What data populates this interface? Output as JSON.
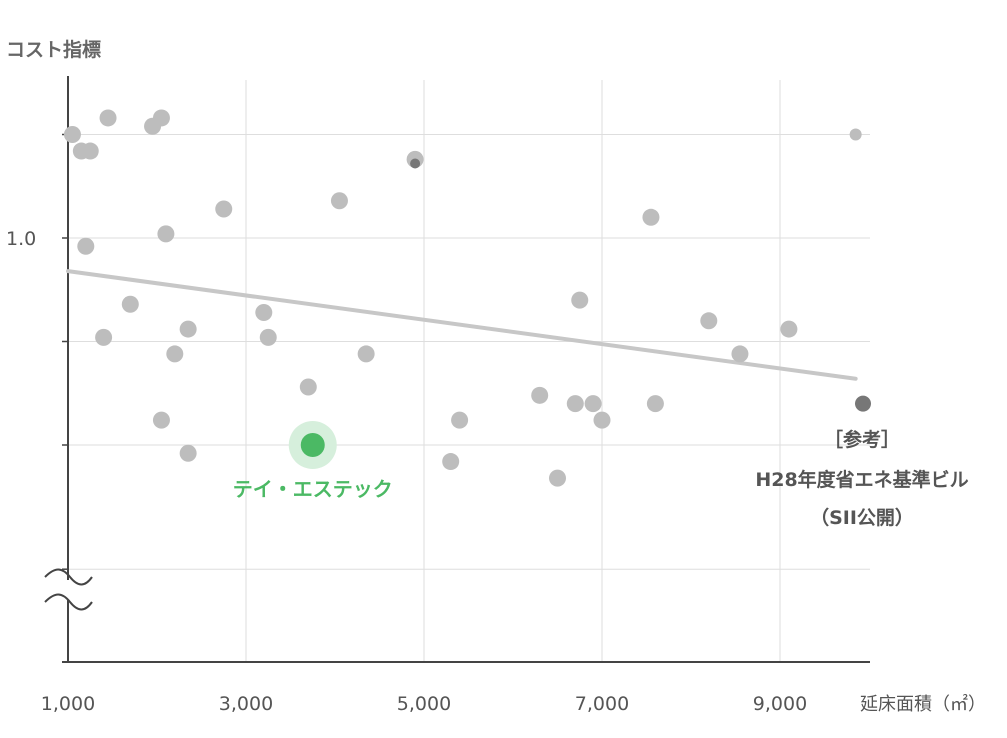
{
  "colors": {
    "point": "#bdbdbd",
    "point_dark": "#777777",
    "trend": "#c7c7c7",
    "highlight": "#4bb964",
    "highlight_halo": "#d6efdc",
    "grid": "#dedede",
    "axis": "#444444"
  },
  "chart_data": {
    "type": "scatter",
    "ylabel": "コスト指標",
    "xlabel": "延床面積（㎡）",
    "x_ticks": [
      1000,
      3000,
      5000,
      7000,
      9000
    ],
    "x_tick_labels": [
      "1,000",
      "3,000",
      "5,000",
      "7,000",
      "9,000"
    ],
    "xlim": [
      1000,
      10000
    ],
    "y_ticks": [
      1.0
    ],
    "y_tick_labels": [
      "1.0"
    ],
    "ylim": [
      0.5,
      1.2
    ],
    "y_axis_break": true,
    "grid": true,
    "series": [
      {
        "points": [
          [
            1050,
            1.125
          ],
          [
            1150,
            1.105
          ],
          [
            1250,
            1.105
          ],
          [
            1450,
            1.145
          ],
          [
            1200,
            0.99
          ],
          [
            1400,
            0.88
          ],
          [
            1700,
            0.92
          ],
          [
            1950,
            1.135
          ],
          [
            2050,
            1.145
          ],
          [
            2100,
            1.005
          ],
          [
            2200,
            0.86
          ],
          [
            2350,
            0.89
          ],
          [
            2050,
            0.78
          ],
          [
            2350,
            0.74
          ],
          [
            2750,
            1.035
          ],
          [
            3200,
            0.91
          ],
          [
            3250,
            0.88
          ],
          [
            3700,
            0.82
          ],
          [
            4050,
            1.045
          ],
          [
            4350,
            0.86
          ],
          [
            4900,
            1.095
          ],
          [
            5300,
            0.73
          ],
          [
            5400,
            0.78
          ],
          [
            6300,
            0.81
          ],
          [
            6500,
            0.71
          ],
          [
            6700,
            0.8
          ],
          [
            6750,
            0.925
          ],
          [
            6900,
            0.8
          ],
          [
            7000,
            0.78
          ],
          [
            7550,
            1.025
          ],
          [
            7600,
            0.8
          ],
          [
            8200,
            0.9
          ],
          [
            8550,
            0.86
          ],
          [
            9100,
            0.89
          ],
          [
            9850,
            1.125
          ]
        ]
      }
    ],
    "trend_line": {
      "start": [
        1000,
        0.96
      ],
      "end": [
        9850,
        0.83
      ]
    },
    "highlight": {
      "label": "テイ・エステック",
      "x": 3750,
      "y": 0.75
    },
    "reference": {
      "label_lines": [
        "［参考］",
        "H28年度省エネ基準ビル",
        "（SII公開）"
      ],
      "x": 9950,
      "y": 0.8
    }
  }
}
